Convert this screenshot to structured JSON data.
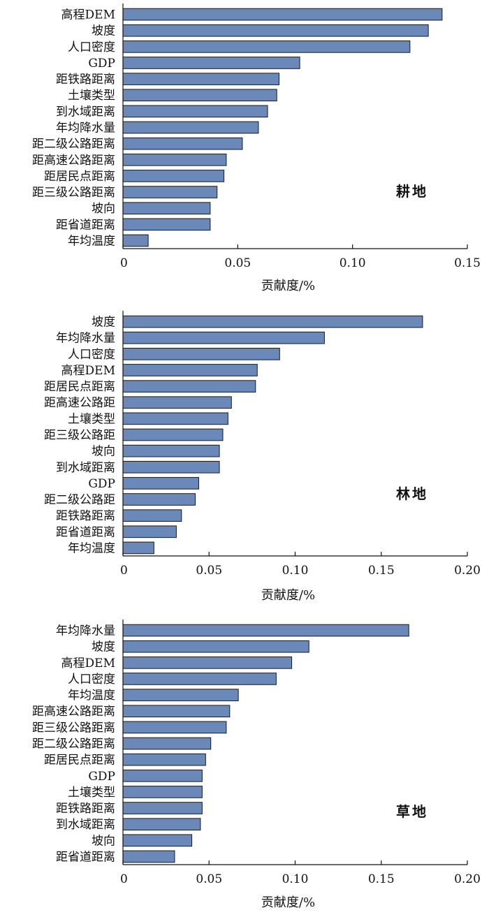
{
  "bar_color": "#6a89b8",
  "bar_stroke": "#1a1a1a",
  "chart_data": [
    {
      "type": "bar",
      "orientation": "horizontal",
      "label": "耕地",
      "xlabel": "贡献度/%",
      "xlim": [
        0,
        0.15
      ],
      "ticks": [
        "0",
        "0.05",
        "0.10",
        "0.15"
      ],
      "tick_values": [
        0,
        0.05,
        0.1,
        0.15
      ],
      "categories": [
        "高程DEM",
        "坡度",
        "人口密度",
        "GDP",
        "距铁路距离",
        "土壤类型",
        "到水域距离",
        "年均降水量",
        "距二级公路距离",
        "距高速公路距离",
        "距居民点距离",
        "距三级公路距离",
        "坡向",
        "距省道距离",
        "年均温度"
      ],
      "values": [
        0.139,
        0.133,
        0.125,
        0.077,
        0.068,
        0.067,
        0.063,
        0.059,
        0.052,
        0.045,
        0.044,
        0.041,
        0.038,
        0.038,
        0.011
      ]
    },
    {
      "type": "bar",
      "orientation": "horizontal",
      "label": "林地",
      "xlabel": "贡献度/%",
      "xlim": [
        0,
        0.2
      ],
      "ticks": [
        "0",
        "0.05",
        "0.10",
        "0.15",
        "0.20"
      ],
      "tick_values": [
        0,
        0.05,
        0.1,
        0.15,
        0.2
      ],
      "categories": [
        "坡度",
        "年均降水量",
        "人口密度",
        "高程DEM",
        "距居民点距离",
        "距高速公路距",
        "土壤类型",
        "距三级公路距",
        "坡向",
        "到水域距离",
        "GDP",
        "距二级公路距",
        "距铁路距离",
        "距省道距离",
        "年均温度"
      ],
      "values": [
        0.174,
        0.117,
        0.091,
        0.078,
        0.077,
        0.063,
        0.061,
        0.058,
        0.056,
        0.056,
        0.044,
        0.042,
        0.034,
        0.031,
        0.018
      ]
    },
    {
      "type": "bar",
      "orientation": "horizontal",
      "label": "草地",
      "xlabel": "贡献度/%",
      "xlim": [
        0,
        0.2
      ],
      "ticks": [
        "0",
        "0.05",
        "0.10",
        "0.15",
        "0.20"
      ],
      "tick_values": [
        0,
        0.05,
        0.1,
        0.15,
        0.2
      ],
      "categories": [
        "年均降水量",
        "坡度",
        "高程DEM",
        "人口密度",
        "年均温度",
        "距高速公路距离",
        "距三级公路距离",
        "距二级公路距离",
        "距居民点距离",
        "GDP",
        "土壤类型",
        "距铁路距离",
        "到水域距离",
        "坡向",
        "距省道距离"
      ],
      "values": [
        0.166,
        0.108,
        0.098,
        0.089,
        0.067,
        0.062,
        0.06,
        0.051,
        0.048,
        0.046,
        0.046,
        0.046,
        0.045,
        0.04,
        0.03
      ]
    }
  ]
}
